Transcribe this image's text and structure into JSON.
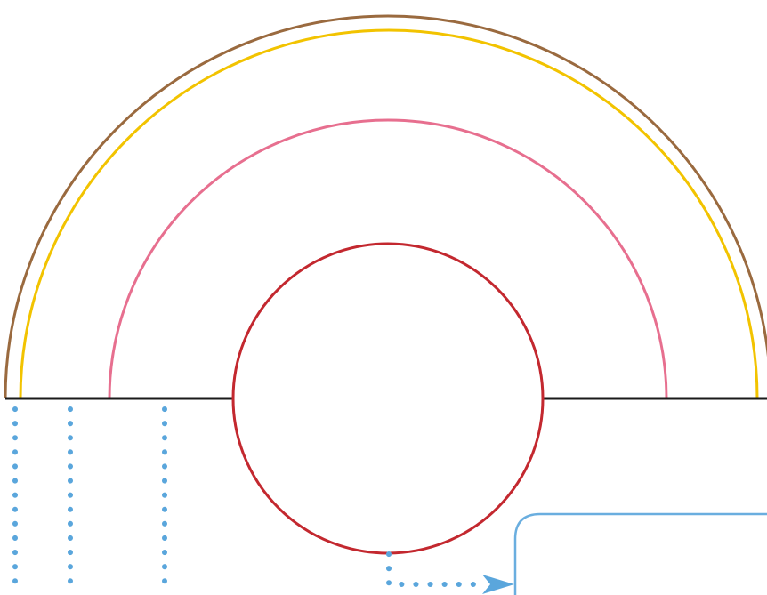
{
  "diagram": {
    "background": "#ffffff",
    "colors": {
      "outer_arc": "#9a6a3f",
      "yellow_arc": "#f2c300",
      "pink_arc": "#e76f8f",
      "red_circle": "#c3282f",
      "baseline": "#1a1a1a",
      "dotted_leader": "#5aa6dc",
      "box_border": "#6aaedf",
      "arrow": "#5aa6dc"
    },
    "elements": [
      {
        "name": "outer-brown-arc",
        "kind": "semicircle"
      },
      {
        "name": "yellow-arc",
        "kind": "semicircle"
      },
      {
        "name": "pink-arc",
        "kind": "semicircle"
      },
      {
        "name": "red-circle",
        "kind": "circle"
      },
      {
        "name": "baseline",
        "kind": "line"
      },
      {
        "name": "dotted-leaders",
        "kind": "dotted-lines",
        "count": 3
      },
      {
        "name": "dotted-arrow-connector",
        "kind": "arrow"
      },
      {
        "name": "rounded-box",
        "kind": "box"
      }
    ]
  }
}
